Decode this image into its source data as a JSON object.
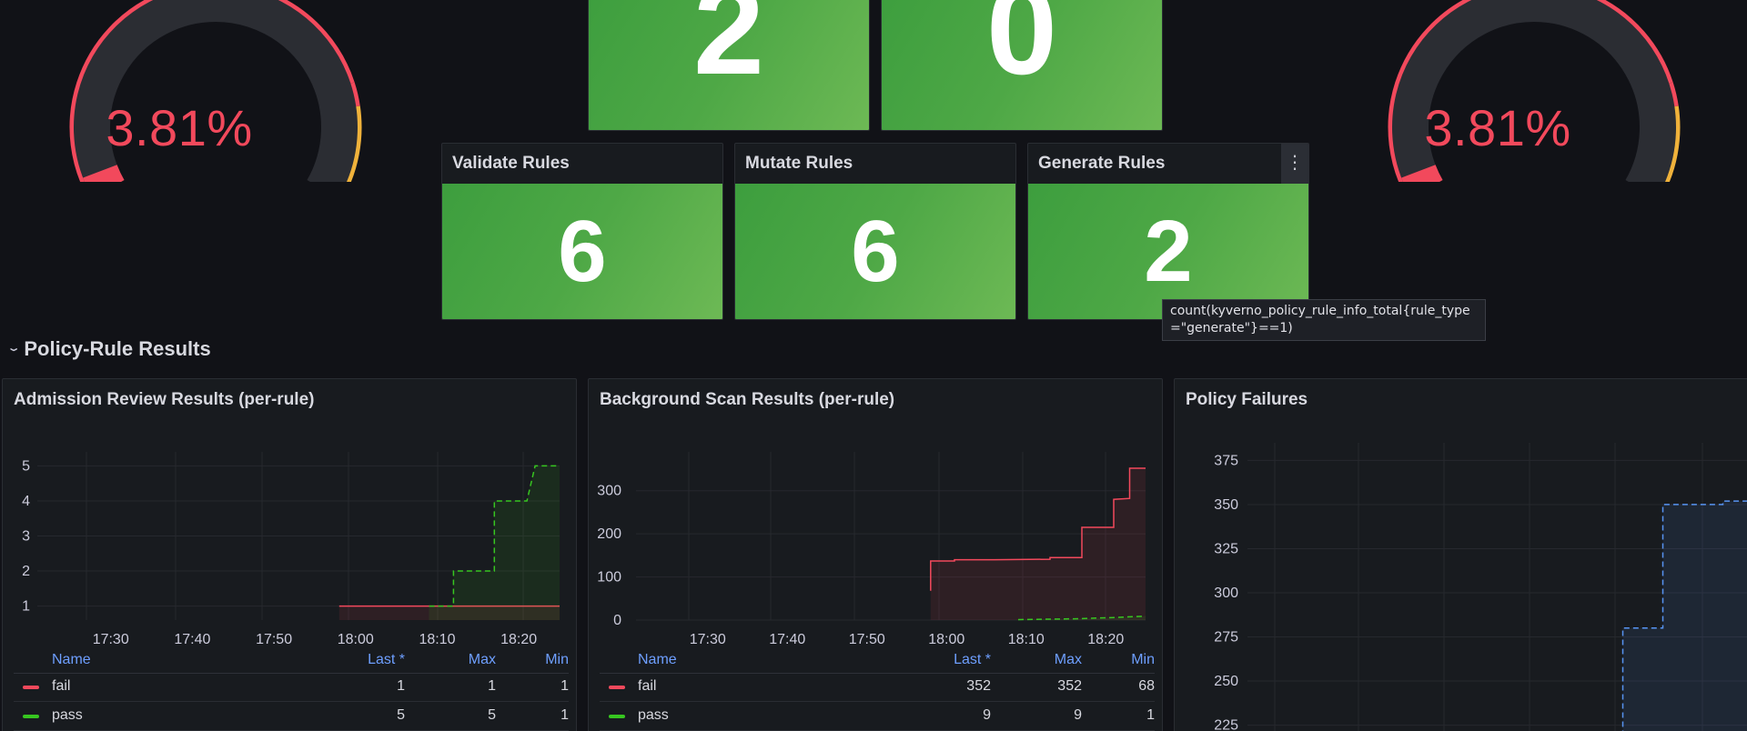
{
  "gauges": [
    {
      "value": "3.81%",
      "percent": 3.81
    },
    {
      "value": "3.81%",
      "percent": 3.81
    }
  ],
  "stats_top": [
    {
      "value": "2"
    },
    {
      "value": "0"
    }
  ],
  "stats": [
    {
      "title": "Validate Rules",
      "value": "6"
    },
    {
      "title": "Mutate Rules",
      "value": "6"
    },
    {
      "title": "Generate Rules",
      "value": "2"
    }
  ],
  "menu_icon": "⋮",
  "tooltip": "count(kyverno_policy_rule_info_total{rule_type\n=\"generate\"}==1)",
  "section": {
    "title": "Policy-Rule Results"
  },
  "panels": {
    "admission": {
      "title": "Admission Review Results (per-rule)",
      "legend": {
        "headers": {
          "name": "Name",
          "last": "Last *",
          "max": "Max",
          "min": "Min"
        },
        "rows": [
          {
            "name": "fail",
            "last": "1",
            "max": "1",
            "min": "1",
            "color": "#f2495c"
          },
          {
            "name": "pass",
            "last": "5",
            "max": "5",
            "min": "1",
            "color": "#37c620"
          }
        ]
      }
    },
    "background": {
      "title": "Background Scan Results (per-rule)",
      "legend": {
        "headers": {
          "name": "Name",
          "last": "Last *",
          "max": "Max",
          "min": "Min"
        },
        "rows": [
          {
            "name": "fail",
            "last": "352",
            "max": "352",
            "min": "68",
            "color": "#f2495c"
          },
          {
            "name": "pass",
            "last": "9",
            "max": "9",
            "min": "1",
            "color": "#37c620"
          }
        ]
      }
    },
    "failures": {
      "title": "Policy Failures"
    }
  },
  "chart_data": [
    {
      "type": "line",
      "title": "Admission Review Results (per-rule)",
      "x": [
        "17:30",
        "17:40",
        "17:50",
        "18:00",
        "18:10",
        "18:20"
      ],
      "yticks": [
        1,
        2,
        3,
        4,
        5
      ],
      "ylim": [
        0.6,
        5.4
      ],
      "series": [
        {
          "name": "fail",
          "color": "#f2495c",
          "points": [
            [
              "17:58",
              1
            ],
            [
              "18:25",
              1
            ]
          ]
        },
        {
          "name": "pass",
          "color": "#37c620",
          "dashed": true,
          "points": [
            [
              "18:09",
              1
            ],
            [
              "18:12",
              1
            ],
            [
              "18:12",
              2
            ],
            [
              "18:17",
              2
            ],
            [
              "18:17",
              4
            ],
            [
              "18:21",
              4
            ],
            [
              "18:22",
              5
            ],
            [
              "18:25",
              5
            ]
          ]
        }
      ]
    },
    {
      "type": "line",
      "title": "Background Scan Results (per-rule)",
      "x": [
        "17:30",
        "17:40",
        "17:50",
        "18:00",
        "18:10",
        "18:20"
      ],
      "yticks": [
        0,
        100,
        200,
        300
      ],
      "ylim": [
        0,
        390
      ],
      "series": [
        {
          "name": "fail",
          "color": "#f2495c",
          "points": [
            [
              "17:58",
              68
            ],
            [
              "17:58",
              137
            ],
            [
              "18:01",
              137
            ],
            [
              "18:01",
              140
            ],
            [
              "18:06",
              140
            ],
            [
              "18:13",
              141
            ],
            [
              "18:13",
              145
            ],
            [
              "18:17",
              145
            ],
            [
              "18:17",
              215
            ],
            [
              "18:21",
              215
            ],
            [
              "18:21",
              280
            ],
            [
              "18:23",
              282
            ],
            [
              "18:23",
              352
            ],
            [
              "18:25",
              352
            ]
          ]
        },
        {
          "name": "pass",
          "color": "#37c620",
          "dashed": true,
          "points": [
            [
              "18:09",
              1
            ],
            [
              "18:16",
              3
            ],
            [
              "18:21",
              6
            ],
            [
              "18:25",
              9
            ]
          ]
        }
      ]
    },
    {
      "type": "line",
      "title": "Policy Failures",
      "x": [],
      "yticks": [
        225,
        250,
        275,
        300,
        325,
        350,
        375
      ],
      "ylim": [
        215,
        385
      ],
      "series": [
        {
          "color": "#5794f2",
          "dashed": true,
          "points": [
            [
              0.0,
              215
            ],
            [
              0.75,
              215
            ],
            [
              0.75,
              280
            ],
            [
              0.83,
              280
            ],
            [
              0.83,
              350
            ],
            [
              0.95,
              350
            ],
            [
              0.95,
              352
            ],
            [
              1.0,
              352
            ]
          ]
        }
      ]
    }
  ]
}
